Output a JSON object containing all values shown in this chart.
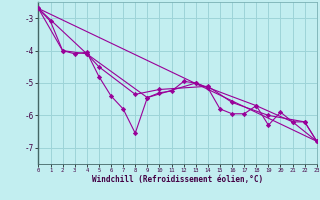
{
  "xlabel": "Windchill (Refroidissement éolien,°C)",
  "background_color": "#c2eef0",
  "grid_color": "#9dd4d8",
  "line_color": "#990099",
  "xlim": [
    0,
    23
  ],
  "ylim": [
    -7.5,
    -2.5
  ],
  "yticks": [
    -3,
    -4,
    -5,
    -6,
    -7
  ],
  "xticks": [
    0,
    1,
    2,
    3,
    4,
    5,
    6,
    7,
    8,
    9,
    10,
    11,
    12,
    13,
    14,
    15,
    16,
    17,
    18,
    19,
    20,
    21,
    22,
    23
  ],
  "series1": [
    [
      0,
      -2.7
    ],
    [
      1,
      -3.1
    ],
    [
      2,
      -4.0
    ],
    [
      3,
      -4.1
    ],
    [
      4,
      -4.05
    ],
    [
      5,
      -4.8
    ],
    [
      6,
      -5.4
    ],
    [
      7,
      -5.8
    ],
    [
      8,
      -6.55
    ],
    [
      9,
      -5.45
    ],
    [
      10,
      -5.3
    ],
    [
      11,
      -5.25
    ],
    [
      12,
      -4.95
    ],
    [
      13,
      -5.0
    ],
    [
      14,
      -5.15
    ],
    [
      15,
      -5.8
    ],
    [
      16,
      -5.95
    ],
    [
      17,
      -5.95
    ],
    [
      18,
      -5.7
    ],
    [
      19,
      -6.3
    ],
    [
      20,
      -5.9
    ],
    [
      21,
      -6.2
    ],
    [
      22,
      -6.2
    ],
    [
      23,
      -6.8
    ]
  ],
  "series2": [
    [
      0,
      -2.7
    ],
    [
      2,
      -4.0
    ],
    [
      4,
      -4.1
    ],
    [
      5,
      -4.5
    ],
    [
      8,
      -5.35
    ],
    [
      10,
      -5.2
    ],
    [
      14,
      -5.1
    ],
    [
      16,
      -5.6
    ],
    [
      19,
      -6.0
    ],
    [
      22,
      -6.2
    ],
    [
      23,
      -6.8
    ]
  ],
  "series3": [
    [
      0,
      -2.7
    ],
    [
      23,
      -6.8
    ]
  ],
  "series4": [
    [
      0,
      -2.7
    ],
    [
      4,
      -4.1
    ],
    [
      9,
      -5.45
    ],
    [
      13,
      -5.0
    ],
    [
      18,
      -5.7
    ],
    [
      21,
      -6.2
    ],
    [
      23,
      -6.8
    ]
  ]
}
